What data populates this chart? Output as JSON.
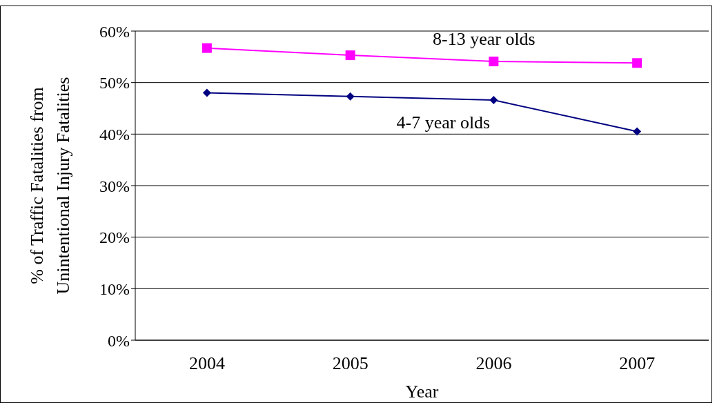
{
  "chart_data": {
    "type": "line",
    "xlabel": "Year",
    "ylabel": "% of Traffic Fatalities from\nUnintentional Injury Fatalities",
    "categories": [
      "2004",
      "2005",
      "2006",
      "2007"
    ],
    "series": [
      {
        "name": "8-13 year olds",
        "color": "#ff00ff",
        "marker": "square",
        "values": [
          56.7,
          55.3,
          54.1,
          53.8
        ]
      },
      {
        "name": "4-7 year olds",
        "color": "#000080",
        "marker": "diamond",
        "values": [
          48.0,
          47.3,
          46.6,
          40.5
        ]
      }
    ],
    "ylim": [
      0,
      60
    ],
    "yticks": [
      {
        "value": 0,
        "label": "0%"
      },
      {
        "value": 10,
        "label": "10%"
      },
      {
        "value": 20,
        "label": "20%"
      },
      {
        "value": 30,
        "label": "30%"
      },
      {
        "value": 40,
        "label": "40%"
      },
      {
        "value": 50,
        "label": "50%"
      },
      {
        "value": 60,
        "label": "60%"
      }
    ],
    "grid": "y",
    "legend": false
  }
}
